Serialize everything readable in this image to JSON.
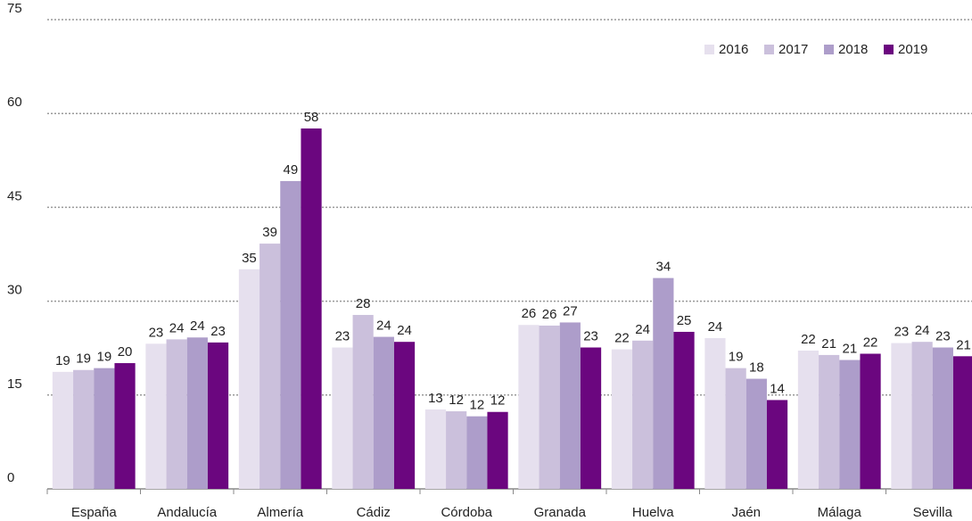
{
  "chart_data": {
    "type": "bar",
    "categories": [
      "España",
      "Andalucía",
      "Almería",
      "Cádiz",
      "Córdoba",
      "Granada",
      "Huelva",
      "Jaén",
      "Málaga",
      "Sevilla"
    ],
    "series": [
      {
        "name": "2016",
        "color": "#e6e0ee",
        "values": [
          18.7,
          23.2,
          35.1,
          22.6,
          12.7,
          26.2,
          22.3,
          24.1,
          22.1,
          23.3
        ],
        "value_labels": [
          "19",
          "23",
          "35",
          "23",
          "13",
          "26",
          "22",
          "24",
          "22",
          "23"
        ]
      },
      {
        "name": "2017",
        "color": "#cbc0dc",
        "values": [
          19.0,
          23.9,
          39.2,
          27.8,
          12.4,
          26.1,
          23.7,
          19.3,
          21.4,
          23.5
        ],
        "value_labels": [
          "19",
          "24",
          "39",
          "28",
          "12",
          "26",
          "24",
          "19",
          "21",
          "24"
        ]
      },
      {
        "name": "2018",
        "color": "#ad9dca",
        "values": [
          19.3,
          24.2,
          49.2,
          24.3,
          11.6,
          26.6,
          33.7,
          17.6,
          20.6,
          22.6
        ],
        "value_labels": [
          "19",
          "24",
          "49",
          "24",
          "12",
          "27",
          "34",
          "18",
          "21",
          "23"
        ]
      },
      {
        "name": "2019",
        "color": "#6b067f",
        "values": [
          20.1,
          23.4,
          57.6,
          23.5,
          12.3,
          22.6,
          25.1,
          14.2,
          21.6,
          21.2
        ],
        "value_labels": [
          "20",
          "23",
          "58",
          "24",
          "12",
          "23",
          "25",
          "14",
          "22",
          "21"
        ]
      }
    ],
    "ylim": [
      0,
      75
    ],
    "yticks": [
      0,
      15,
      30,
      45,
      60,
      75
    ],
    "grid": true,
    "legend": "top-right"
  }
}
